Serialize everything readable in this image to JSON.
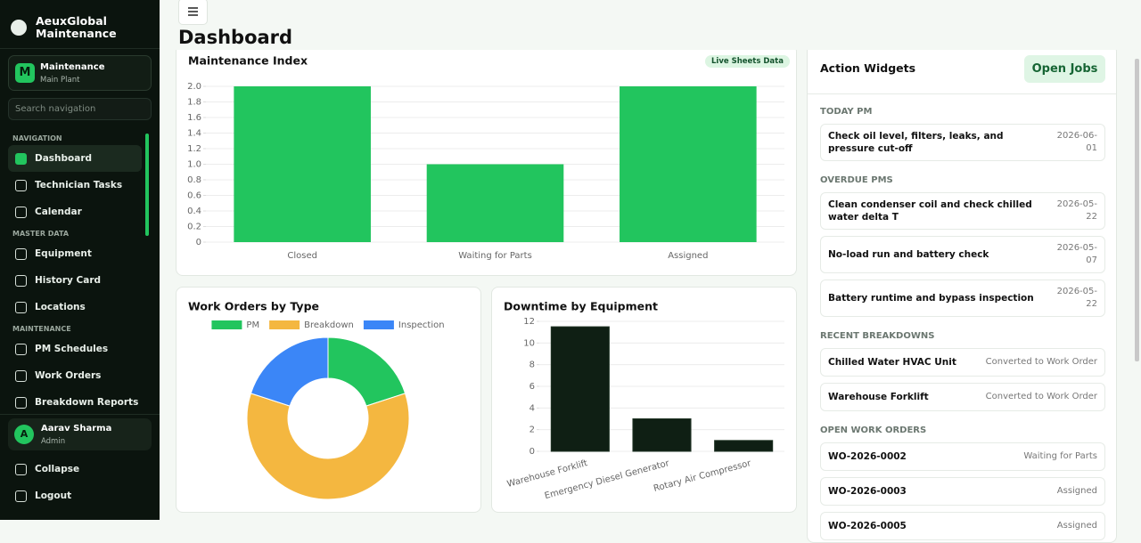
{
  "sidebar": {
    "brand": "AeuxGlobal Maintenance",
    "workspace": {
      "initial": "M",
      "name": "Maintenance",
      "site": "Main Plant"
    },
    "search_placeholder": "Search navigation",
    "sections": [
      {
        "title": "NAVIGATION",
        "items": [
          "Dashboard",
          "Technician Tasks",
          "Calendar"
        ]
      },
      {
        "title": "MASTER DATA",
        "items": [
          "Equipment",
          "History Card",
          "Locations"
        ]
      },
      {
        "title": "MAINTENANCE",
        "items": [
          "PM Schedules",
          "Work Orders",
          "Breakdown Reports"
        ]
      }
    ],
    "user": {
      "initial": "A",
      "name": "Aarav Sharma",
      "role": "Admin"
    },
    "footer": [
      "Collapse",
      "Logout"
    ]
  },
  "header": {
    "title": "Dashboard"
  },
  "badge": "Live Sheets Data",
  "chart_data": [
    {
      "type": "bar",
      "title": "Maintenance Index",
      "categories": [
        "Closed",
        "Waiting for Parts",
        "Assigned"
      ],
      "values": [
        2,
        1,
        2
      ],
      "color": "#22c55e",
      "ylim": [
        0,
        2
      ],
      "yticks": [
        0,
        0.2,
        0.4,
        0.6,
        0.8,
        {
          "value": 1,
          "label": "1.0"
        },
        1.2,
        1.4,
        1.6,
        1.8,
        {
          "value": 2,
          "label": "2.0"
        }
      ],
      "grid": true
    },
    {
      "type": "doughnut",
      "title": "Work Orders by Type",
      "categories": [
        "PM",
        "Breakdown",
        "Inspection"
      ],
      "values": [
        2,
        6,
        2
      ],
      "colors": [
        "#22c55e",
        "#f4b740",
        "#3b86f7"
      ]
    },
    {
      "type": "bar",
      "title": "Downtime by Equipment",
      "categories": [
        "Warehouse Forklift",
        "Emergency Diesel Generator",
        "Rotary Air Compressor"
      ],
      "values": [
        11.5,
        3,
        1
      ],
      "color": "#0f1f14",
      "ylim": [
        0,
        12
      ],
      "yticks": [
        0,
        2,
        4,
        6,
        8,
        10,
        12
      ],
      "grid": true,
      "rotate_labels": true
    }
  ],
  "widgets": {
    "title": "Action Widgets",
    "button": "Open Jobs",
    "sections": [
      {
        "title": "TODAY PM",
        "items": [
          {
            "title": "Check oil level, filters, leaks, and pressure cut-off",
            "meta": "2026-06-01"
          }
        ]
      },
      {
        "title": "OVERDUE PMS",
        "items": [
          {
            "title": "Clean condenser coil and check chilled water delta T",
            "meta": "2026-05-22"
          },
          {
            "title": "No-load run and battery check",
            "meta": "2026-05-07"
          },
          {
            "title": "Battery runtime and bypass inspection",
            "meta": "2026-05-22"
          }
        ]
      },
      {
        "title": "RECENT BREAKDOWNS",
        "items": [
          {
            "title": "Chilled Water HVAC Unit",
            "meta": "Converted to Work Order"
          },
          {
            "title": "Warehouse Forklift",
            "meta": "Converted to Work Order"
          }
        ]
      },
      {
        "title": "OPEN WORK ORDERS",
        "items": [
          {
            "title": "WO-2026-0002",
            "meta": "Waiting for Parts"
          },
          {
            "title": "WO-2026-0003",
            "meta": "Assigned"
          },
          {
            "title": "WO-2026-0005",
            "meta": "Assigned"
          }
        ]
      }
    ]
  }
}
